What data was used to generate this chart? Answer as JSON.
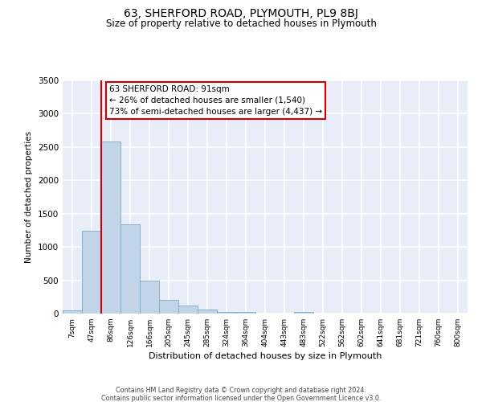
{
  "title": "63, SHERFORD ROAD, PLYMOUTH, PL9 8BJ",
  "subtitle": "Size of property relative to detached houses in Plymouth",
  "xlabel": "Distribution of detached houses by size in Plymouth",
  "ylabel": "Number of detached properties",
  "categories": [
    "7sqm",
    "47sqm",
    "86sqm",
    "126sqm",
    "166sqm",
    "205sqm",
    "245sqm",
    "285sqm",
    "324sqm",
    "364sqm",
    "404sqm",
    "443sqm",
    "483sqm",
    "522sqm",
    "562sqm",
    "602sqm",
    "641sqm",
    "681sqm",
    "721sqm",
    "760sqm",
    "800sqm"
  ],
  "bar_values": [
    50,
    1240,
    2580,
    1340,
    490,
    200,
    115,
    55,
    30,
    20,
    0,
    0,
    20,
    0,
    0,
    0,
    0,
    0,
    0,
    0,
    0
  ],
  "bar_color": "#c2d4e8",
  "bar_edge_color": "#7aaac8",
  "background_color": "#ffffff",
  "plot_bg_color": "#e8edf8",
  "grid_color": "#ffffff",
  "vline_color": "#cc0000",
  "vline_index": 2,
  "annotation_title": "63 SHERFORD ROAD: 91sqm",
  "annotation_line1": "← 26% of detached houses are smaller (1,540)",
  "annotation_line2": "73% of semi-detached houses are larger (4,437) →",
  "annotation_box_color": "#ffffff",
  "annotation_box_edge": "#cc0000",
  "ylim": [
    0,
    3500
  ],
  "yticks": [
    0,
    500,
    1000,
    1500,
    2000,
    2500,
    3000,
    3500
  ],
  "footer1": "Contains HM Land Registry data © Crown copyright and database right 2024.",
  "footer2": "Contains public sector information licensed under the Open Government Licence v3.0."
}
